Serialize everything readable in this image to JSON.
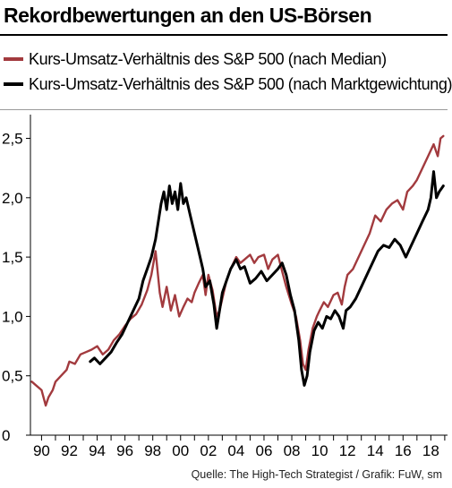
{
  "title": "Rekordbewertungen an den US-Börsen",
  "source": "Quelle: The High-Tech Strategist / Grafik: FuW, sm",
  "colors": {
    "median": "#a23a3e",
    "market": "#000000"
  },
  "chart_data": {
    "type": "line",
    "title": "Rekordbewertungen an den US-Börsen",
    "legend_position": "top-left",
    "grid": false,
    "xlim": [
      1989.2,
      2019.2
    ],
    "ylim": [
      0,
      2.7
    ],
    "x_ticks": [
      1990,
      1992,
      1994,
      1996,
      1998,
      2000,
      2002,
      2004,
      2006,
      2008,
      2010,
      2012,
      2014,
      2016,
      2018
    ],
    "x_tick_labels": [
      "90",
      "92",
      "94",
      "96",
      "98",
      "00",
      "02",
      "04",
      "06",
      "08",
      "10",
      "12",
      "14",
      "16",
      "18"
    ],
    "y_ticks": [
      0,
      0.5,
      1.0,
      1.5,
      2.0,
      2.5
    ],
    "y_tick_labels": [
      "0",
      "0,5",
      "1,0",
      "1,5",
      "2,0",
      "2,5"
    ],
    "series": [
      {
        "name": "Kurs-Umsatz-Verhältnis des S&P 500 (nach Median)",
        "color": "#a23a3e",
        "x": [
          1989.3,
          1989.6,
          1990.0,
          1990.3,
          1990.5,
          1990.8,
          1991.0,
          1991.4,
          1991.8,
          1992.0,
          1992.4,
          1992.8,
          1993.2,
          1993.6,
          1994.0,
          1994.4,
          1994.8,
          1995.2,
          1995.6,
          1996.0,
          1996.4,
          1996.8,
          1997.2,
          1997.6,
          1997.9,
          1998.2,
          1998.5,
          1998.7,
          1999.0,
          1999.3,
          1999.6,
          1999.9,
          2000.2,
          2000.5,
          2000.8,
          2001.0,
          2001.3,
          2001.6,
          2001.8,
          2002.0,
          2002.3,
          2002.6,
          2002.8,
          2003.0,
          2003.3,
          2003.6,
          2004.0,
          2004.3,
          2004.6,
          2005.0,
          2005.3,
          2005.6,
          2006.0,
          2006.3,
          2006.6,
          2007.0,
          2007.3,
          2007.6,
          2008.0,
          2008.3,
          2008.6,
          2008.8,
          2009.0,
          2009.2,
          2009.5,
          2009.8,
          2010.0,
          2010.3,
          2010.6,
          2011.0,
          2011.3,
          2011.6,
          2011.8,
          2012.0,
          2012.4,
          2012.8,
          2013.2,
          2013.6,
          2014.0,
          2014.4,
          2014.8,
          2015.2,
          2015.6,
          2016.0,
          2016.3,
          2016.7,
          2017.0,
          2017.4,
          2017.8,
          2018.0,
          2018.2,
          2018.5,
          2018.7,
          2018.9
        ],
        "values": [
          0.45,
          0.42,
          0.38,
          0.25,
          0.32,
          0.38,
          0.45,
          0.5,
          0.55,
          0.62,
          0.6,
          0.68,
          0.7,
          0.72,
          0.75,
          0.68,
          0.72,
          0.8,
          0.85,
          0.92,
          0.98,
          1.02,
          1.1,
          1.22,
          1.35,
          1.55,
          1.2,
          1.08,
          1.25,
          1.05,
          1.18,
          1.0,
          1.08,
          1.15,
          1.12,
          1.2,
          1.28,
          1.35,
          1.18,
          1.35,
          1.22,
          1.0,
          1.05,
          1.15,
          1.3,
          1.4,
          1.5,
          1.45,
          1.48,
          1.52,
          1.45,
          1.5,
          1.52,
          1.4,
          1.48,
          1.52,
          1.38,
          1.25,
          1.1,
          1.0,
          0.8,
          0.6,
          0.55,
          0.72,
          0.9,
          1.0,
          1.05,
          1.12,
          1.08,
          1.18,
          1.2,
          1.1,
          1.25,
          1.35,
          1.4,
          1.5,
          1.6,
          1.7,
          1.85,
          1.8,
          1.9,
          1.95,
          1.98,
          1.9,
          2.05,
          2.1,
          2.15,
          2.25,
          2.35,
          2.4,
          2.45,
          2.35,
          2.5,
          2.52
        ]
      },
      {
        "name": "Kurs-Umsatz-Verhältnis des S&P 500 (nach Marktgewichtung)",
        "color": "#000000",
        "x": [
          1993.5,
          1993.8,
          1994.2,
          1994.6,
          1995.0,
          1995.4,
          1995.8,
          1996.2,
          1996.6,
          1997.0,
          1997.3,
          1997.6,
          1997.9,
          1998.2,
          1998.4,
          1998.6,
          1998.8,
          1999.0,
          1999.2,
          1999.4,
          1999.6,
          1999.8,
          2000.0,
          2000.2,
          2000.4,
          2000.7,
          2001.0,
          2001.3,
          2001.6,
          2001.8,
          2002.1,
          2002.4,
          2002.6,
          2002.8,
          2003.0,
          2003.3,
          2003.6,
          2004.0,
          2004.3,
          2004.6,
          2005.0,
          2005.4,
          2005.8,
          2006.2,
          2006.6,
          2007.0,
          2007.3,
          2007.6,
          2007.9,
          2008.2,
          2008.5,
          2008.7,
          2008.9,
          2009.1,
          2009.3,
          2009.6,
          2009.9,
          2010.2,
          2010.5,
          2010.8,
          2011.1,
          2011.4,
          2011.7,
          2011.9,
          2012.2,
          2012.6,
          2013.0,
          2013.4,
          2013.8,
          2014.2,
          2014.6,
          2015.0,
          2015.4,
          2015.8,
          2016.2,
          2016.6,
          2017.0,
          2017.4,
          2017.8,
          2018.0,
          2018.2,
          2018.4,
          2018.6,
          2018.9
        ],
        "values": [
          0.62,
          0.65,
          0.6,
          0.65,
          0.7,
          0.78,
          0.85,
          0.95,
          1.05,
          1.15,
          1.3,
          1.4,
          1.5,
          1.65,
          1.8,
          1.95,
          2.05,
          1.9,
          2.1,
          1.95,
          2.05,
          1.9,
          2.12,
          1.95,
          2.0,
          1.85,
          1.7,
          1.55,
          1.4,
          1.25,
          1.3,
          1.1,
          0.9,
          1.05,
          1.2,
          1.3,
          1.4,
          1.48,
          1.4,
          1.42,
          1.28,
          1.32,
          1.38,
          1.3,
          1.35,
          1.4,
          1.45,
          1.35,
          1.18,
          1.05,
          0.8,
          0.55,
          0.42,
          0.5,
          0.7,
          0.88,
          0.95,
          0.9,
          1.0,
          0.98,
          1.05,
          1.0,
          0.9,
          1.05,
          1.08,
          1.15,
          1.25,
          1.35,
          1.45,
          1.55,
          1.6,
          1.58,
          1.65,
          1.6,
          1.5,
          1.6,
          1.7,
          1.8,
          1.9,
          2.0,
          2.22,
          2.0,
          2.05,
          2.1
        ]
      }
    ]
  }
}
